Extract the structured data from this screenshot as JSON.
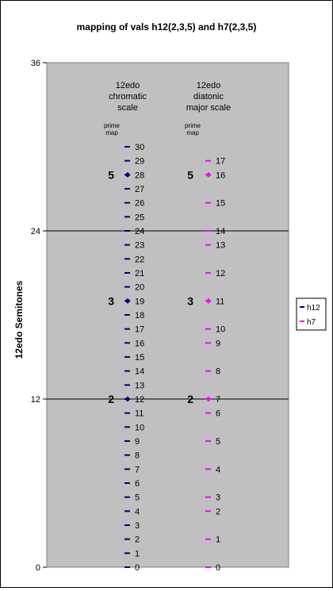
{
  "chart_data": {
    "type": "scatter",
    "title": "mapping of vals h12(2,3,5) and h7(2,3,5)",
    "ylabel": "12edo Semitones",
    "xlabel": "",
    "ylim": [
      0,
      36
    ],
    "y_ticks": [
      0,
      12,
      24,
      36
    ],
    "gridlines_y": [
      12,
      24
    ],
    "legend_position": "right",
    "series": [
      {
        "name": "h12",
        "color": "#000080",
        "header_lines": [
          "12edo",
          "chromatic",
          "scale"
        ],
        "prime_map_label": [
          "prime",
          "map"
        ],
        "steps": [
          {
            "label": "0",
            "y": 0
          },
          {
            "label": "1",
            "y": 1
          },
          {
            "label": "2",
            "y": 2
          },
          {
            "label": "3",
            "y": 3
          },
          {
            "label": "4",
            "y": 4
          },
          {
            "label": "5",
            "y": 5
          },
          {
            "label": "6",
            "y": 6
          },
          {
            "label": "7",
            "y": 7
          },
          {
            "label": "8",
            "y": 8
          },
          {
            "label": "9",
            "y": 9
          },
          {
            "label": "10",
            "y": 10
          },
          {
            "label": "11",
            "y": 11
          },
          {
            "label": "12",
            "y": 12
          },
          {
            "label": "13",
            "y": 13
          },
          {
            "label": "14",
            "y": 14
          },
          {
            "label": "15",
            "y": 15
          },
          {
            "label": "16",
            "y": 16
          },
          {
            "label": "17",
            "y": 17
          },
          {
            "label": "18",
            "y": 18
          },
          {
            "label": "19",
            "y": 19
          },
          {
            "label": "20",
            "y": 20
          },
          {
            "label": "21",
            "y": 21
          },
          {
            "label": "22",
            "y": 22
          },
          {
            "label": "23",
            "y": 23
          },
          {
            "label": "24",
            "y": 24
          },
          {
            "label": "25",
            "y": 25
          },
          {
            "label": "26",
            "y": 26
          },
          {
            "label": "27",
            "y": 27
          },
          {
            "label": "28",
            "y": 28
          },
          {
            "label": "29",
            "y": 29
          },
          {
            "label": "30",
            "y": 30
          }
        ],
        "primes": [
          {
            "label": "2",
            "y": 12
          },
          {
            "label": "3",
            "y": 19
          },
          {
            "label": "5",
            "y": 28
          }
        ]
      },
      {
        "name": "h7",
        "color": "#ff00ff",
        "header_lines": [
          "12edo",
          "diatonic",
          "major scale"
        ],
        "prime_map_label": [
          "prime",
          "map"
        ],
        "steps": [
          {
            "label": "0",
            "y": 0
          },
          {
            "label": "1",
            "y": 2
          },
          {
            "label": "2",
            "y": 4
          },
          {
            "label": "3",
            "y": 5
          },
          {
            "label": "4",
            "y": 7
          },
          {
            "label": "5",
            "y": 9
          },
          {
            "label": "6",
            "y": 11
          },
          {
            "label": "7",
            "y": 12
          },
          {
            "label": "8",
            "y": 14
          },
          {
            "label": "9",
            "y": 16
          },
          {
            "label": "10",
            "y": 17
          },
          {
            "label": "11",
            "y": 19
          },
          {
            "label": "12",
            "y": 21
          },
          {
            "label": "13",
            "y": 23
          },
          {
            "label": "14",
            "y": 24
          },
          {
            "label": "15",
            "y": 26
          },
          {
            "label": "16",
            "y": 28
          },
          {
            "label": "17",
            "y": 29
          }
        ],
        "primes": [
          {
            "label": "2",
            "y": 12
          },
          {
            "label": "3",
            "y": 19
          },
          {
            "label": "5",
            "y": 28
          }
        ]
      }
    ]
  }
}
